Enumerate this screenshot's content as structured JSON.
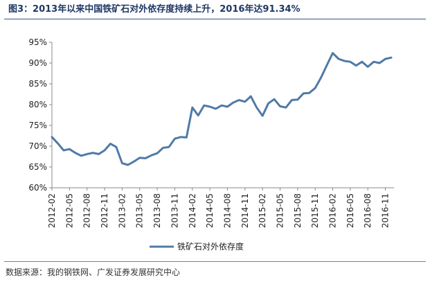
{
  "title": "图3：2013年以来中国铁矿石对外依存度持续上升，2016年达91.34%",
  "source": "数据来源：我的钢铁网、广发证券发展研究中心",
  "colors": {
    "line": "#4f7aa6",
    "title": "#1f3864",
    "axis": "#888888"
  },
  "chart_data": {
    "type": "line",
    "title": "图3：2013年以来中国铁矿石对外依存度持续上升，2016年达91.34%",
    "xlabel": "",
    "ylabel": "",
    "ylim": [
      60,
      95
    ],
    "yticks": [
      "60%",
      "65%",
      "70%",
      "75%",
      "80%",
      "85%",
      "90%",
      "95%"
    ],
    "x_tick_labels": [
      "2012-02",
      "2012-05",
      "2012-08",
      "2012-11",
      "2013-02",
      "2013-05",
      "2013-08",
      "2013-11",
      "2014-02",
      "2014-05",
      "2014-08",
      "2014-11",
      "2015-02",
      "2015-05",
      "2015-08",
      "2015-11",
      "2016-02",
      "2016-05",
      "2016-08",
      "2016-11"
    ],
    "grid": false,
    "legend_position": "bottom",
    "x": [
      "2012-02",
      "2012-03",
      "2012-04",
      "2012-05",
      "2012-06",
      "2012-07",
      "2012-08",
      "2012-09",
      "2012-10",
      "2012-11",
      "2012-12",
      "2013-01",
      "2013-02",
      "2013-03",
      "2013-04",
      "2013-05",
      "2013-06",
      "2013-07",
      "2013-08",
      "2013-09",
      "2013-10",
      "2013-11",
      "2013-12",
      "2014-01",
      "2014-02",
      "2014-03",
      "2014-04",
      "2014-05",
      "2014-06",
      "2014-07",
      "2014-08",
      "2014-09",
      "2014-10",
      "2014-11",
      "2014-12",
      "2015-01",
      "2015-02",
      "2015-03",
      "2015-04",
      "2015-05",
      "2015-06",
      "2015-07",
      "2015-08",
      "2015-09",
      "2015-10",
      "2015-11",
      "2015-12",
      "2016-01",
      "2016-02",
      "2016-03",
      "2016-04",
      "2016-05",
      "2016-06",
      "2016-07",
      "2016-08",
      "2016-09",
      "2016-10",
      "2016-11",
      "2016-12"
    ],
    "series": [
      {
        "name": "铁矿石对外依存度",
        "values": [
          72.2,
          70.7,
          69.0,
          69.3,
          68.4,
          67.7,
          68.1,
          68.4,
          68.1,
          69.0,
          70.6,
          69.8,
          65.9,
          65.5,
          66.3,
          67.2,
          67.1,
          67.8,
          68.3,
          69.6,
          69.8,
          71.8,
          72.2,
          72.1,
          79.3,
          77.4,
          79.8,
          79.5,
          79.0,
          79.8,
          79.5,
          80.5,
          81.1,
          80.7,
          82.0,
          79.3,
          77.3,
          80.3,
          81.3,
          79.6,
          79.3,
          81.1,
          81.2,
          82.7,
          82.8,
          84.0,
          86.5,
          89.5,
          92.4,
          91.0,
          90.5,
          90.3,
          89.4,
          90.3,
          89.1,
          90.3,
          90.0,
          91.0,
          91.3
        ]
      }
    ]
  }
}
